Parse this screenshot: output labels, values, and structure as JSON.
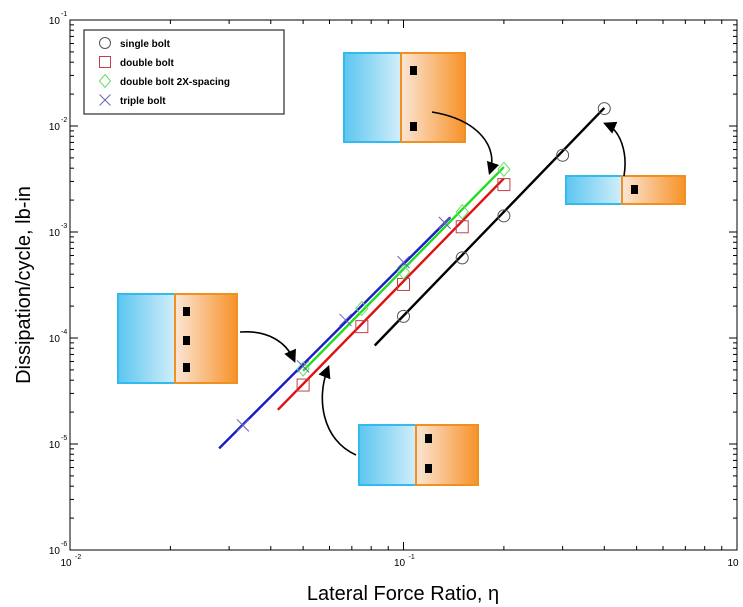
{
  "chart_data": {
    "type": "scatter",
    "xscale": "log",
    "yscale": "log",
    "xlabel": "Lateral Force Ratio, η",
    "ylabel": "Dissipation/cycle, lb-in",
    "xlim": [
      0.01,
      1
    ],
    "ylim": [
      1e-06,
      0.1
    ],
    "x_tick_labels": [
      {
        "base": "10",
        "exp": "-2",
        "value": 0.01
      },
      {
        "base": "10",
        "exp": "-1",
        "value": 0.1
      },
      {
        "base": "10",
        "exp": "",
        "value": 1
      }
    ],
    "y_tick_labels": [
      {
        "base": "10",
        "exp": "-6",
        "value": 1e-06
      },
      {
        "base": "10",
        "exp": "-5",
        "value": 1e-05
      },
      {
        "base": "10",
        "exp": "-4",
        "value": 0.0001
      },
      {
        "base": "10",
        "exp": "-3",
        "value": 0.001
      },
      {
        "base": "10",
        "exp": "-2",
        "value": 0.01
      },
      {
        "base": "10",
        "exp": "-1",
        "value": 0.1
      }
    ],
    "legend_position": "top-left",
    "grid": false,
    "series": [
      {
        "name": "single bolt",
        "marker": "circle",
        "color": "#555555",
        "fit_color": "#000000",
        "points": [
          [
            0.1,
            0.00016
          ],
          [
            0.15,
            0.00057
          ],
          [
            0.2,
            0.00142
          ],
          [
            0.3,
            0.0053
          ],
          [
            0.4,
            0.0146
          ]
        ],
        "fit": [
          [
            0.082,
            8.5e-05
          ],
          [
            0.4,
            0.0148
          ]
        ]
      },
      {
        "name": "double bolt",
        "marker": "square",
        "color": "#c04050",
        "fit_color": "#e01010",
        "points": [
          [
            0.05,
            3.6e-05
          ],
          [
            0.075,
            0.000128
          ],
          [
            0.1,
            0.00032
          ],
          [
            0.15,
            0.00112
          ],
          [
            0.2,
            0.0028
          ]
        ],
        "fit": [
          [
            0.042,
            2.1e-05
          ],
          [
            0.2,
            0.0032
          ]
        ]
      },
      {
        "name": "double bolt 2X-spacing",
        "marker": "diamond",
        "color": "#66dd66",
        "fit_color": "#22dd22",
        "points": [
          [
            0.05,
            5.1e-05
          ],
          [
            0.075,
            0.00019
          ],
          [
            0.1,
            0.00042
          ],
          [
            0.15,
            0.00155
          ],
          [
            0.2,
            0.0039
          ]
        ],
        "fit": [
          [
            0.05,
            4.9e-05
          ],
          [
            0.2,
            0.0041
          ]
        ]
      },
      {
        "name": "triple bolt",
        "marker": "cross",
        "color": "#6666bb",
        "fit_color": "#1a1acc",
        "points": [
          [
            0.033,
            1.5e-05
          ],
          [
            0.05,
            5.4e-05
          ],
          [
            0.067,
            0.000148
          ],
          [
            0.1,
            0.00052
          ],
          [
            0.133,
            0.00122
          ]
        ],
        "fit": [
          [
            0.028,
            9.1e-06
          ],
          [
            0.138,
            0.00137
          ]
        ]
      }
    ]
  },
  "insets": [
    {
      "bolts": 2
    },
    {
      "bolts": 1
    },
    {
      "bolts": 3
    },
    {
      "bolts": 2
    }
  ]
}
